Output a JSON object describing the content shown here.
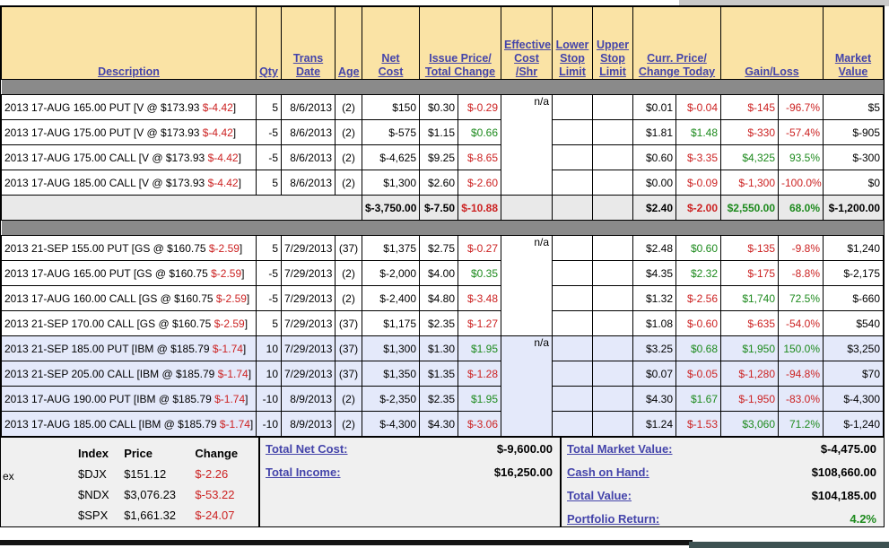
{
  "colors": {
    "negative": "#cc2222",
    "positive": "#1d8a1d",
    "header_bg": "#fae3a5",
    "header_link": "#4444aa",
    "highlight_row_bg": "#e4e9fa",
    "subtotal_bg": "#e9e9e9",
    "separator_bar": "#8a8a8a",
    "panel_bg": "#f0f0f0"
  },
  "header": {
    "columns": [
      {
        "id": "desc",
        "span": 1,
        "lines": [
          "Description"
        ]
      },
      {
        "id": "qty",
        "span": 1,
        "lines": [
          "Qty"
        ]
      },
      {
        "id": "date",
        "span": 1,
        "lines": [
          "Trans",
          "Date"
        ]
      },
      {
        "id": "age",
        "span": 1,
        "lines": [
          "Age"
        ]
      },
      {
        "id": "net",
        "span": 1,
        "lines": [
          "Net",
          "Cost"
        ]
      },
      {
        "id": "issue-total",
        "span": 2,
        "lines": [
          "Issue Price/",
          "Total Change"
        ]
      },
      {
        "id": "eff",
        "span": 1,
        "lines": [
          "Effective",
          "Cost",
          "/Shr"
        ]
      },
      {
        "id": "lower",
        "span": 1,
        "lines": [
          "Lower",
          "Stop",
          "Limit"
        ]
      },
      {
        "id": "upper",
        "span": 1,
        "lines": [
          "Upper",
          "Stop",
          "Limit"
        ]
      },
      {
        "id": "curr-change",
        "span": 2,
        "lines": [
          "Curr. Price/",
          "Change Today"
        ]
      },
      {
        "id": "gainloss",
        "span": 2,
        "lines": [
          "Gain/Loss"
        ]
      },
      {
        "id": "market",
        "span": 1,
        "lines": [
          "Market",
          "Value"
        ]
      }
    ]
  },
  "groups": [
    {
      "id": "v-options",
      "highlighted": false,
      "eff_cost_shr": "n/a",
      "rows": [
        {
          "desc_pre": "2013 17-AUG 165.00 PUT [V @ $173.93 ",
          "desc_change": "$-4.42",
          "desc_post": "]",
          "qty": "5",
          "date": "8/6/2013",
          "age": "(2)",
          "net": "$150",
          "issue": "$0.30",
          "tchg": "$-0.29",
          "curr": "$0.01",
          "ctoday": "$-0.04",
          "gain": "$-145",
          "pct": "-96.7%",
          "market": "$5"
        },
        {
          "desc_pre": "2013 17-AUG 175.00 PUT [V @ $173.93 ",
          "desc_change": "$-4.42",
          "desc_post": "]",
          "qty": "-5",
          "date": "8/6/2013",
          "age": "(2)",
          "net": "$-575",
          "issue": "$1.15",
          "tchg": "$0.66",
          "curr": "$1.81",
          "ctoday": "$1.48",
          "gain": "$-330",
          "pct": "-57.4%",
          "market": "$-905"
        },
        {
          "desc_pre": "2013 17-AUG 175.00 CALL [V @ $173.93 ",
          "desc_change": "$-4.42",
          "desc_post": "]",
          "qty": "-5",
          "date": "8/6/2013",
          "age": "(2)",
          "net": "$-4,625",
          "issue": "$9.25",
          "tchg": "$-8.65",
          "curr": "$0.60",
          "ctoday": "$-3.35",
          "gain": "$4,325",
          "pct": "93.5%",
          "market": "$-300"
        },
        {
          "desc_pre": "2013 17-AUG 185.00 CALL [V @ $173.93 ",
          "desc_change": "$-4.42",
          "desc_post": "]",
          "qty": "5",
          "date": "8/6/2013",
          "age": "(2)",
          "net": "$1,300",
          "issue": "$2.60",
          "tchg": "$-2.60",
          "curr": "$0.00",
          "ctoday": "$-0.09",
          "gain": "$-1,300",
          "pct": "-100.0%",
          "market": "$0"
        }
      ],
      "subtotal": {
        "net": "$-3,750.00",
        "issue": "$-7.50",
        "tchg": "$-10.88",
        "curr": "$2.40",
        "ctoday": "$-2.00",
        "gain": "$2,550.00",
        "pct": "68.0%",
        "market": "$-1,200.00"
      }
    },
    {
      "id": "gs-options",
      "highlighted": false,
      "eff_cost_shr": "n/a",
      "rows": [
        {
          "desc_pre": "2013 21-SEP 155.00 PUT [GS @ $160.75 ",
          "desc_change": "$-2.59",
          "desc_post": "]",
          "qty": "5",
          "date": "7/29/2013",
          "age": "(37)",
          "net": "$1,375",
          "issue": "$2.75",
          "tchg": "$-0.27",
          "curr": "$2.48",
          "ctoday": "$0.60",
          "gain": "$-135",
          "pct": "-9.8%",
          "market": "$1,240"
        },
        {
          "desc_pre": "2013 17-AUG 165.00 PUT [GS @ $160.75 ",
          "desc_change": "$-2.59",
          "desc_post": "]",
          "qty": "-5",
          "date": "7/29/2013",
          "age": "(2)",
          "net": "$-2,000",
          "issue": "$4.00",
          "tchg": "$0.35",
          "curr": "$4.35",
          "ctoday": "$2.32",
          "gain": "$-175",
          "pct": "-8.8%",
          "market": "$-2,175"
        },
        {
          "desc_pre": "2013 17-AUG 160.00 CALL [GS @ $160.75 ",
          "desc_change": "$-2.59",
          "desc_post": "]",
          "qty": "-5",
          "date": "7/29/2013",
          "age": "(2)",
          "net": "$-2,400",
          "issue": "$4.80",
          "tchg": "$-3.48",
          "curr": "$1.32",
          "ctoday": "$-2.56",
          "gain": "$1,740",
          "pct": "72.5%",
          "market": "$-660"
        },
        {
          "desc_pre": "2013 21-SEP 170.00 CALL [GS @ $160.75 ",
          "desc_change": "$-2.59",
          "desc_post": "]",
          "qty": "5",
          "date": "7/29/2013",
          "age": "(37)",
          "net": "$1,175",
          "issue": "$2.35",
          "tchg": "$-1.27",
          "curr": "$1.08",
          "ctoday": "$-0.60",
          "gain": "$-635",
          "pct": "-54.0%",
          "market": "$540"
        }
      ],
      "subtotal": null
    },
    {
      "id": "ibm-options",
      "highlighted": true,
      "eff_cost_shr": "n/a",
      "rows": [
        {
          "desc_pre": "2013 21-SEP 185.00 PUT [IBM @ $185.79 ",
          "desc_change": "$-1.74",
          "desc_post": "]",
          "qty": "10",
          "date": "7/29/2013",
          "age": "(37)",
          "net": "$1,300",
          "issue": "$1.30",
          "tchg": "$1.95",
          "curr": "$3.25",
          "ctoday": "$0.68",
          "gain": "$1,950",
          "pct": "150.0%",
          "market": "$3,250"
        },
        {
          "desc_pre": "2013 21-SEP 205.00 CALL [IBM @ $185.79 ",
          "desc_change": "$-1.74",
          "desc_post": "]",
          "qty": "10",
          "date": "7/29/2013",
          "age": "(37)",
          "net": "$1,350",
          "issue": "$1.35",
          "tchg": "$-1.28",
          "curr": "$0.07",
          "ctoday": "$-0.05",
          "gain": "$-1,280",
          "pct": "-94.8%",
          "market": "$70"
        },
        {
          "desc_pre": "2013 17-AUG 190.00 PUT [IBM @ $185.79 ",
          "desc_change": "$-1.74",
          "desc_post": "]",
          "qty": "-10",
          "date": "8/9/2013",
          "age": "(2)",
          "net": "$-2,350",
          "issue": "$2.35",
          "tchg": "$1.95",
          "curr": "$4.30",
          "ctoday": "$1.67",
          "gain": "$-1,950",
          "pct": "-83.0%",
          "market": "$-4,300"
        },
        {
          "desc_pre": "2013 17-AUG 185.00 CALL [IBM @ $185.79 ",
          "desc_change": "$-1.74",
          "desc_post": "]",
          "qty": "-10",
          "date": "8/9/2013",
          "age": "(2)",
          "net": "$-4,300",
          "issue": "$4.30",
          "tchg": "$-3.06",
          "curr": "$1.24",
          "ctoday": "$-1.53",
          "gain": "$3,060",
          "pct": "71.2%",
          "market": "$-1,240"
        }
      ],
      "subtotal": null
    }
  ],
  "totals": {
    "index_quotes": {
      "clipped_label": "ex",
      "headers": [
        "Index",
        "Price",
        "Change"
      ],
      "rows": [
        {
          "index": "$DJX",
          "price": "$151.12",
          "change": "$-2.26"
        },
        {
          "index": "$NDX",
          "price": "$3,076.23",
          "change": "$-53.22"
        },
        {
          "index": "$SPX",
          "price": "$1,661.32",
          "change": "$-24.07"
        }
      ]
    },
    "middle": [
      {
        "label": "Total Net Cost:",
        "value": "$-9,600.00",
        "positive": false
      },
      {
        "label": "Total Income:",
        "value": "$16,250.00",
        "positive": false
      }
    ],
    "right": [
      {
        "label": "Total Market Value:",
        "value": "$-4,475.00",
        "positive": false
      },
      {
        "label": "Cash on Hand:",
        "value": "$108,660.00",
        "positive": false
      },
      {
        "label": "Total Value:",
        "value": "$104,185.00",
        "positive": false
      },
      {
        "label": "Portfolio Return:",
        "value": "4.2%",
        "positive": true
      }
    ]
  }
}
